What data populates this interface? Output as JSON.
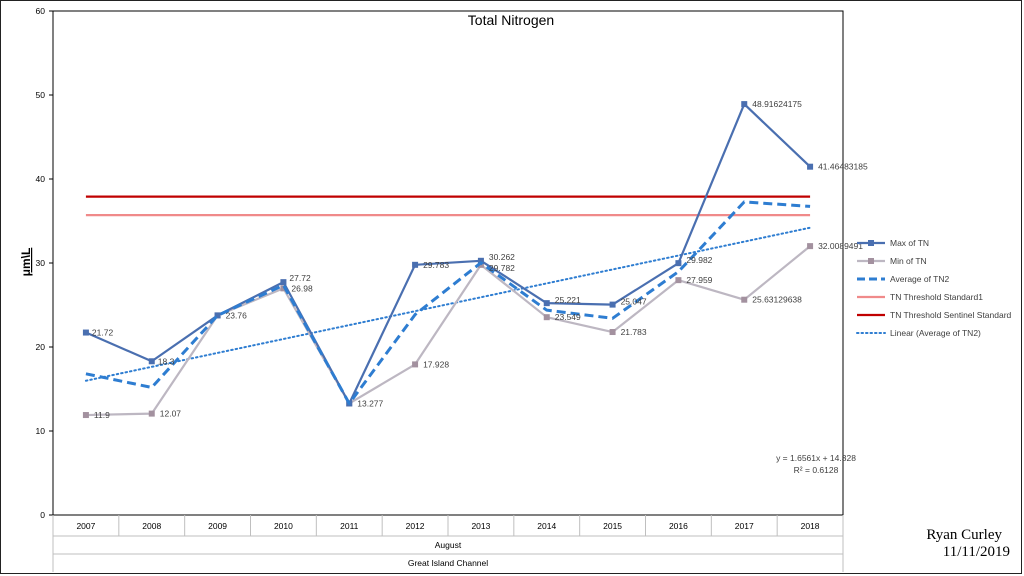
{
  "chart_data": {
    "type": "line",
    "title": "Total Nitrogen",
    "ylabel": "μm\\L",
    "xlabel": "August",
    "xlabel2": "Great Island Channel",
    "ylim": [
      0,
      60
    ],
    "yticks": [
      0,
      10,
      20,
      30,
      40,
      50,
      60
    ],
    "categories": [
      "2007",
      "2008",
      "2009",
      "2010",
      "2011",
      "2012",
      "2013",
      "2014",
      "2015",
      "2016",
      "2017",
      "2018"
    ],
    "series": [
      {
        "name": "Max of TN",
        "color": "#4A6FB0",
        "style": "solid-marker",
        "values": [
          21.72,
          18.3,
          23.76,
          27.72,
          13.277,
          29.783,
          30.262,
          25.221,
          25.047,
          29.982,
          48.91624175,
          41.46483185
        ],
        "labels": [
          "21.72",
          "18.3",
          "",
          "27.72",
          "",
          "29.783",
          "30.262",
          "25.221",
          "25.047",
          "29.982",
          "48.91624175",
          "41.46483185"
        ]
      },
      {
        "name": "Min of TN",
        "color": "#BDB7C2",
        "marker_color": "#A3919F",
        "style": "solid-marker",
        "values": [
          11.9,
          12.07,
          23.76,
          26.98,
          13.277,
          17.928,
          29.782,
          23.549,
          21.783,
          27.959,
          25.63129638,
          32.0089491
        ],
        "labels": [
          "11.9",
          "12.07",
          "23.76",
          "26.98",
          "13.277",
          "17.928",
          "29.782",
          "23.549",
          "21.783",
          "27.959",
          "25.63129638",
          "32.0089491"
        ]
      },
      {
        "name": "Average of TN2",
        "color": "#2E7DD1",
        "style": "dashed",
        "values": [
          16.81,
          15.185,
          23.76,
          27.35,
          13.277,
          23.8555,
          30.022,
          24.385,
          23.415,
          28.9705,
          37.27376907,
          36.73689048
        ]
      },
      {
        "name": "TN Threshold Standard1",
        "color": "#F08A8A",
        "style": "solid",
        "values": [
          35.7,
          35.7,
          35.7,
          35.7,
          35.7,
          35.7,
          35.7,
          35.7,
          35.7,
          35.7,
          35.7,
          35.7
        ]
      },
      {
        "name": "TN Threshold Sentinel Standard",
        "color": "#C00000",
        "style": "solid",
        "values": [
          37.9,
          37.9,
          37.9,
          37.9,
          37.9,
          37.9,
          37.9,
          37.9,
          37.9,
          37.9,
          37.9,
          37.9
        ]
      }
    ],
    "trendline": {
      "name": "Linear (Average of TN2)",
      "color": "#2E7DD1",
      "style": "dotted",
      "slope": 1.6561,
      "intercept": 14.328,
      "equation": "y = 1.6561x + 14.328",
      "r2": "R² = 0.6128"
    },
    "legend_position": "right",
    "grid": false
  },
  "author": {
    "name": "Ryan Curley",
    "date": "11/11/2019"
  }
}
